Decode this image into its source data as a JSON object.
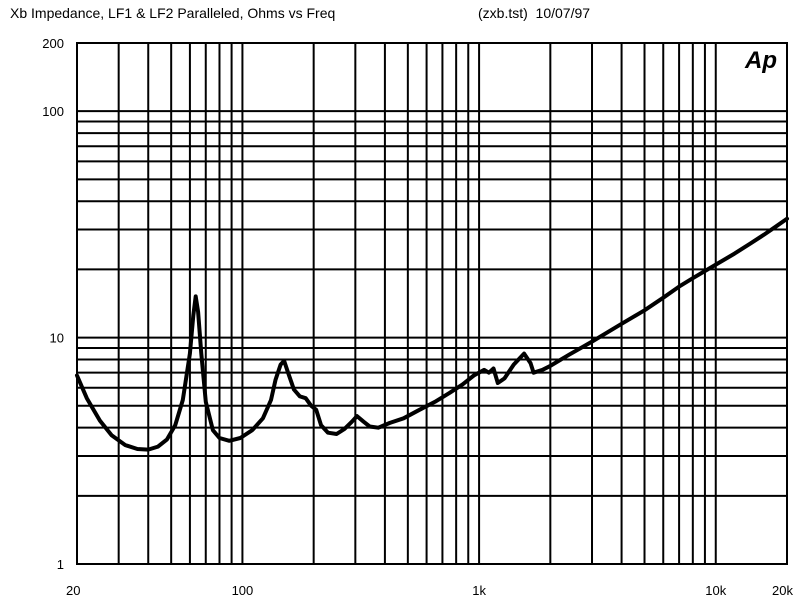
{
  "chart_data": {
    "type": "line",
    "title": "Xb Impedance, LF1 & LF2 Paralleled, Ohms vs Freq",
    "subtitle": "(zxb.tst)  10/07/97",
    "logo_text": "Ap",
    "xscale": "log",
    "yscale": "log",
    "xlim": [
      20,
      20000
    ],
    "ylim": [
      1,
      200
    ],
    "grid": true,
    "xticks": [
      {
        "value": 20,
        "label": "20"
      },
      {
        "value": 100,
        "label": "100"
      },
      {
        "value": 1000,
        "label": "1k"
      },
      {
        "value": 10000,
        "label": "10k"
      },
      {
        "value": 20000,
        "label": "20k"
      }
    ],
    "yticks": [
      {
        "value": 1,
        "label": "1"
      },
      {
        "value": 10,
        "label": "10"
      },
      {
        "value": 100,
        "label": "100"
      },
      {
        "value": 200,
        "label": "200"
      }
    ],
    "series": [
      {
        "color": "#000000",
        "points": [
          [
            20,
            6.8
          ],
          [
            22,
            5.4
          ],
          [
            25,
            4.3
          ],
          [
            28,
            3.7
          ],
          [
            32,
            3.35
          ],
          [
            36,
            3.22
          ],
          [
            40,
            3.2
          ],
          [
            44,
            3.3
          ],
          [
            48,
            3.55
          ],
          [
            52,
            4.1
          ],
          [
            56,
            5.3
          ],
          [
            60,
            8.5
          ],
          [
            62,
            12.5
          ],
          [
            63.5,
            15.2
          ],
          [
            65,
            13
          ],
          [
            67,
            8.5
          ],
          [
            70,
            5.2
          ],
          [
            75,
            3.9
          ],
          [
            80,
            3.6
          ],
          [
            88,
            3.5
          ],
          [
            98,
            3.6
          ],
          [
            110,
            3.9
          ],
          [
            122,
            4.4
          ],
          [
            132,
            5.3
          ],
          [
            138,
            6.5
          ],
          [
            145,
            7.6
          ],
          [
            150,
            7.9
          ],
          [
            156,
            7
          ],
          [
            165,
            5.9
          ],
          [
            175,
            5.5
          ],
          [
            185,
            5.4
          ],
          [
            195,
            5
          ],
          [
            205,
            4.8
          ],
          [
            215,
            4.1
          ],
          [
            230,
            3.8
          ],
          [
            250,
            3.75
          ],
          [
            270,
            3.95
          ],
          [
            290,
            4.25
          ],
          [
            305,
            4.5
          ],
          [
            325,
            4.25
          ],
          [
            345,
            4.05
          ],
          [
            375,
            4.0
          ],
          [
            420,
            4.2
          ],
          [
            480,
            4.4
          ],
          [
            560,
            4.8
          ],
          [
            650,
            5.2
          ],
          [
            750,
            5.7
          ],
          [
            850,
            6.2
          ],
          [
            950,
            6.8
          ],
          [
            1050,
            7.2
          ],
          [
            1100,
            7.0
          ],
          [
            1150,
            7.3
          ],
          [
            1200,
            6.3
          ],
          [
            1280,
            6.6
          ],
          [
            1400,
            7.6
          ],
          [
            1550,
            8.5
          ],
          [
            1650,
            7.7
          ],
          [
            1700,
            7.0
          ],
          [
            1850,
            7.2
          ],
          [
            2000,
            7.5
          ],
          [
            2400,
            8.4
          ],
          [
            3000,
            9.6
          ],
          [
            4000,
            11.5
          ],
          [
            5000,
            13.2
          ],
          [
            6000,
            15.0
          ],
          [
            7000,
            16.8
          ],
          [
            8000,
            18.3
          ],
          [
            10000,
            21
          ],
          [
            12000,
            23.5
          ],
          [
            14000,
            26
          ],
          [
            16000,
            28.5
          ],
          [
            18000,
            31
          ],
          [
            20000,
            33.5
          ]
        ]
      }
    ]
  }
}
